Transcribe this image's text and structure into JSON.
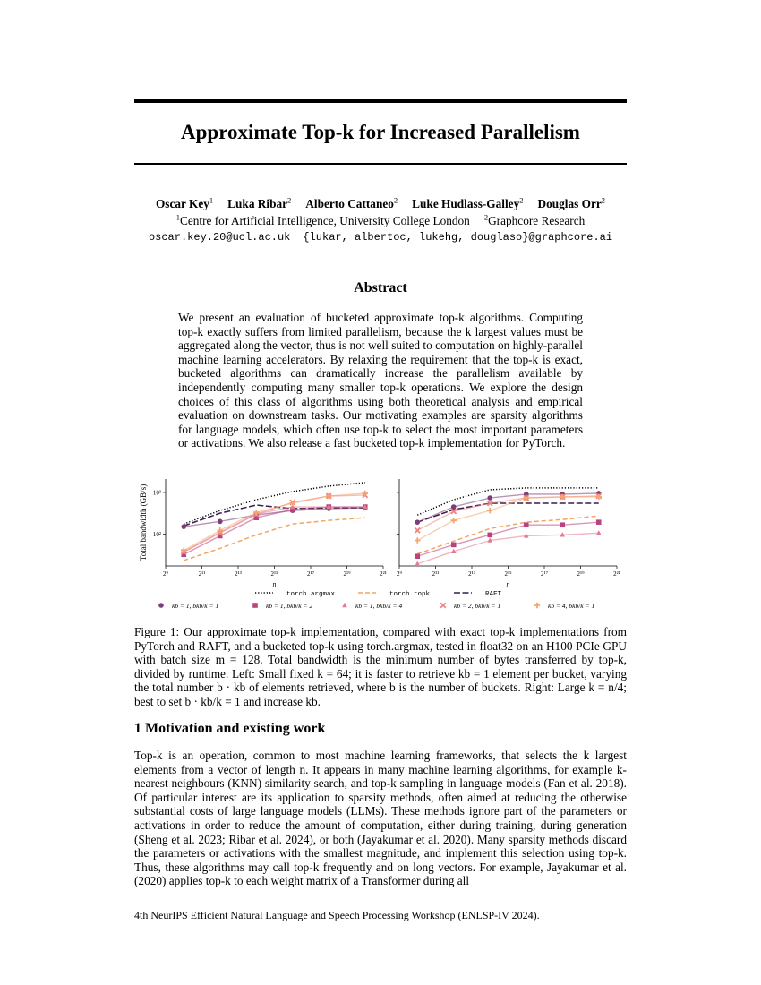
{
  "header": {
    "title": "Approximate Top-k for Increased Parallelism",
    "authors": [
      {
        "name": "Oscar Key",
        "affil": "1"
      },
      {
        "name": "Luka Ribar",
        "affil": "2"
      },
      {
        "name": "Alberto Cattaneo",
        "affil": "2"
      },
      {
        "name": "Luke Hudlass-Galley",
        "affil": "2"
      },
      {
        "name": "Douglas Orr",
        "affil": "2"
      }
    ],
    "affiliations": [
      {
        "mark": "1",
        "name": "Centre for Artificial Intelligence, University College London"
      },
      {
        "mark": "2",
        "name": "Graphcore Research"
      }
    ],
    "emails": [
      "oscar.key.20@ucl.ac.uk",
      "{lukar, albertoc, lukehg, douglaso}@graphcore.ai"
    ]
  },
  "abstract": {
    "heading": "Abstract",
    "text": "We present an evaluation of bucketed approximate top-k algorithms. Computing top-k exactly suffers from limited parallelism, because the k largest values must be aggregated along the vector, thus is not well suited to computation on highly-parallel machine learning accelerators. By relaxing the requirement that the top-k is exact, bucketed algorithms can dramatically increase the parallelism available by independently computing many smaller top-k operations. We explore the design choices of this class of algorithms using both theoretical analysis and empirical evaluation on downstream tasks. Our motivating examples are sparsity algorithms for language models, which often use top-k to select the most important parameters or activations. We also release a fast bucketed top-k implementation for PyTorch."
  },
  "chart_data": [
    {
      "type": "line",
      "y_label": "Total bandwidth (GB/s)",
      "x_label": "n",
      "log_x": true,
      "log_y": true,
      "x": [
        1024,
        4096,
        16384,
        65536,
        262144,
        1048576
      ],
      "xlim": [
        512,
        2097152
      ],
      "xticks": [
        {
          "value": 512,
          "label": "2⁹"
        },
        {
          "value": 2048,
          "label": "2¹¹"
        },
        {
          "value": 8192,
          "label": "2¹³"
        },
        {
          "value": 32768,
          "label": "2¹⁵"
        },
        {
          "value": 131072,
          "label": "2¹⁷"
        },
        {
          "value": 524288,
          "label": "2¹⁹"
        },
        {
          "value": 2097152,
          "label": "2²¹"
        }
      ],
      "ylim": [
        17,
        2100
      ],
      "yticks": [
        {
          "value": 100,
          "label": "10²"
        },
        {
          "value": 1000,
          "label": "10³"
        }
      ],
      "series": [
        {
          "name": "torch.argmax",
          "color": "#000000",
          "dash": "dotted",
          "values": [
            174,
            367,
            670,
            1050,
            1420,
            1730
          ]
        },
        {
          "name": "torch.topk",
          "color": "#f2a55f",
          "dash": "dashed",
          "values": [
            23,
            45,
            95,
            174,
            212,
            246
          ]
        },
        {
          "name": "RAFT",
          "color": "#3a1c4f",
          "dash": "dashdot",
          "values": [
            157,
            316,
            496,
            407,
            427,
            427
          ]
        },
        {
          "name": "kb = 1, bkb/k = 1",
          "color": "#7e3d78",
          "marker": "circle",
          "values": [
            150,
            200,
            286,
            367,
            407,
            427
          ]
        },
        {
          "name": "kb = 1, bkb/k = 2",
          "color": "#b9447c",
          "marker": "square",
          "values": [
            32,
            90,
            246,
            387,
            450,
            450
          ]
        },
        {
          "name": "kb = 1, bkb/k = 4",
          "color": "#e27a92",
          "marker": "triangle",
          "values": [
            37,
            110,
            300,
            450,
            450,
            450
          ]
        },
        {
          "name": "kb = 2, bkb/k = 1",
          "color": "#ee8580",
          "marker": "x",
          "values": [
            37,
            105,
            300,
            577,
            818,
            860
          ]
        },
        {
          "name": "kb = 4, bkb/k = 1",
          "color": "#f5a66c",
          "marker": "plus",
          "values": [
            40,
            122,
            330,
            548,
            818,
            950
          ]
        }
      ]
    },
    {
      "type": "line",
      "x_label": "n",
      "log_x": true,
      "log_y": true,
      "show_ytick_labels": false,
      "x": [
        1024,
        4096,
        16384,
        65536,
        262144,
        1048576
      ],
      "xlim": [
        512,
        2097152
      ],
      "xticks": [
        {
          "value": 512,
          "label": "2⁹"
        },
        {
          "value": 2048,
          "label": "2¹¹"
        },
        {
          "value": 8192,
          "label": "2¹³"
        },
        {
          "value": 32768,
          "label": "2¹⁵"
        },
        {
          "value": 131072,
          "label": "2¹⁷"
        },
        {
          "value": 524288,
          "label": "2¹⁹"
        },
        {
          "value": 2097152,
          "label": "2²¹"
        }
      ],
      "ylim": [
        17,
        2100
      ],
      "yticks": [
        100,
        1000
      ],
      "series": [
        {
          "color": "#000000",
          "dash": "dotted",
          "values": [
            286,
            670,
            1160,
            1285,
            1285,
            1285
          ]
        },
        {
          "color": "#f2a55f",
          "dash": "dashed",
          "values": [
            33,
            67,
            135,
            192,
            223,
            272
          ]
        },
        {
          "color": "#3a1c4f",
          "dash": "dashdot",
          "values": [
            192,
            387,
            548,
            548,
            548,
            548
          ]
        },
        {
          "color": "#7e3d78",
          "marker": "circle",
          "values": [
            192,
            450,
            740,
            905,
            905,
            950
          ]
        },
        {
          "color": "#b9447c",
          "marker": "square",
          "values": [
            29,
            55,
            95,
            165,
            165,
            192
          ]
        },
        {
          "color": "#e27a92",
          "marker": "triangle",
          "values": [
            19,
            38,
            70,
            90,
            95,
            105
          ]
        },
        {
          "color": "#ee8580",
          "marker": "x",
          "values": [
            122,
            350,
            548,
            740,
            780,
            818
          ]
        },
        {
          "color": "#f5a66c",
          "marker": "plus",
          "values": [
            70,
            212,
            367,
            740,
            780,
            780
          ]
        }
      ]
    }
  ],
  "caption": "Figure 1: Our approximate top-k implementation, compared with exact top-k implementations from PyTorch and RAFT, and a bucketed top-k using torch.argmax, tested in float32 on an H100 PCIe GPU with batch size m = 128. Total bandwidth is the minimum number of bytes transferred by top-k, divided by runtime. Left: Small fixed k = 64; it is faster to retrieve kb = 1 element per bucket, varying the total number b · kb of elements retrieved, where b is the number of buckets. Right: Large k = n/4; best to set b · kb/k = 1 and increase kb.",
  "section": {
    "heading": "1   Motivation and existing work",
    "text": "Top-k is an operation, common to most machine learning frameworks, that selects the k largest elements from a vector of length n. It appears in many machine learning algorithms, for example k-nearest neighbours (KNN) similarity search, and top-k sampling in language models (Fan et al. 2018). Of particular interest are its application to sparsity methods, often aimed at reducing the otherwise substantial costs of large language models (LLMs). These methods ignore part of the parameters or activations in order to reduce the amount of computation, either during training, during generation (Sheng et al. 2023; Ribar et al. 2024), or both (Jayakumar et al. 2020). Many sparsity methods discard the parameters or activations with the smallest magnitude, and implement this selection using top-k. Thus, these algorithms may call top-k frequently and on long vectors. For example, Jayakumar et al. (2020) applies top-k to each weight matrix of a Transformer during all"
  },
  "footer": "4th NeurIPS Efficient Natural Language and Speech Processing Workshop (ENLSP-IV 2024)."
}
